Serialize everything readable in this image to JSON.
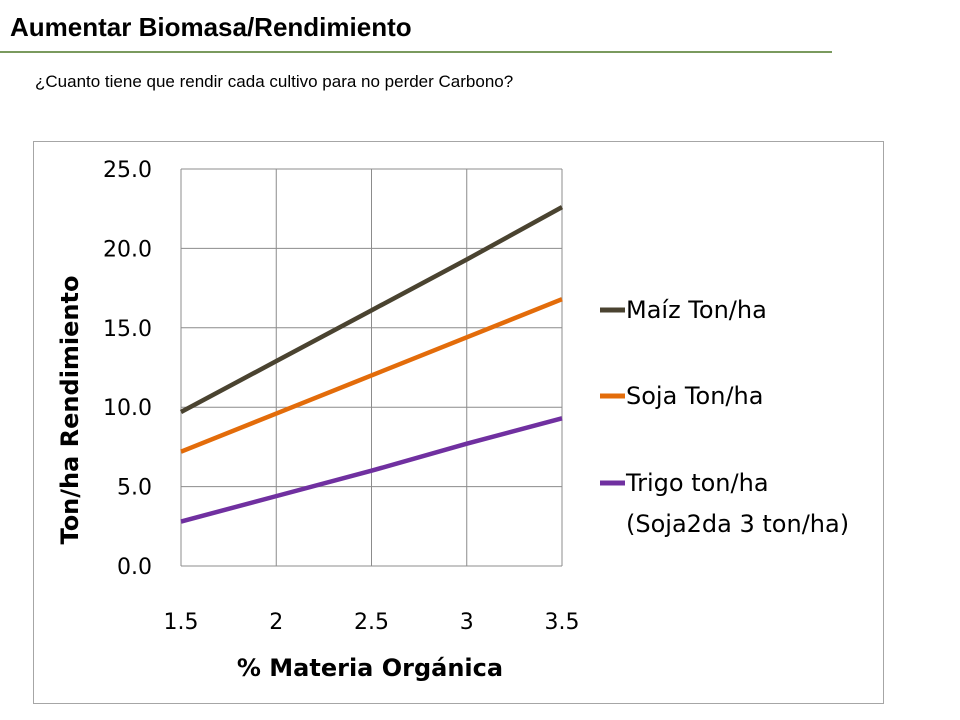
{
  "slide": {
    "title": "Aumentar Biomasa/Rendimiento",
    "subtitle": "¿Cuanto tiene que rendir cada cultivo para no perder Carbono?"
  },
  "chart_data": {
    "type": "line",
    "x": [
      1.5,
      2,
      2.5,
      3,
      3.5
    ],
    "x_tick_labels": [
      "1.5",
      "2",
      "2.5",
      "3",
      "3.5"
    ],
    "y_tick_labels": [
      "0.0",
      "5.0",
      "10.0",
      "15.0",
      "20.0",
      "25.0"
    ],
    "xlabel": "% Materia Orgánica",
    "ylabel": "Ton/ha Rendimiento",
    "xlim": [
      1.5,
      3.5
    ],
    "ylim": [
      0,
      25
    ],
    "grid": true,
    "legend_position": "right",
    "series": [
      {
        "name": "Maíz Ton/ha",
        "color": "#4a4330",
        "values": [
          9.7,
          12.9,
          16.1,
          19.3,
          22.6
        ]
      },
      {
        "name": "Soja Ton/ha",
        "color": "#e36c0a",
        "values": [
          7.2,
          9.6,
          12.0,
          14.4,
          16.8
        ]
      },
      {
        "name": "Trigo ton/ha (Soja2da 3 ton/ha)",
        "legend_lines": [
          "Trigo ton/ha",
          "(Soja2da 3 ton/ha)"
        ],
        "color": "#7030a0",
        "values": [
          2.8,
          4.4,
          6.0,
          7.7,
          9.3
        ]
      }
    ]
  }
}
